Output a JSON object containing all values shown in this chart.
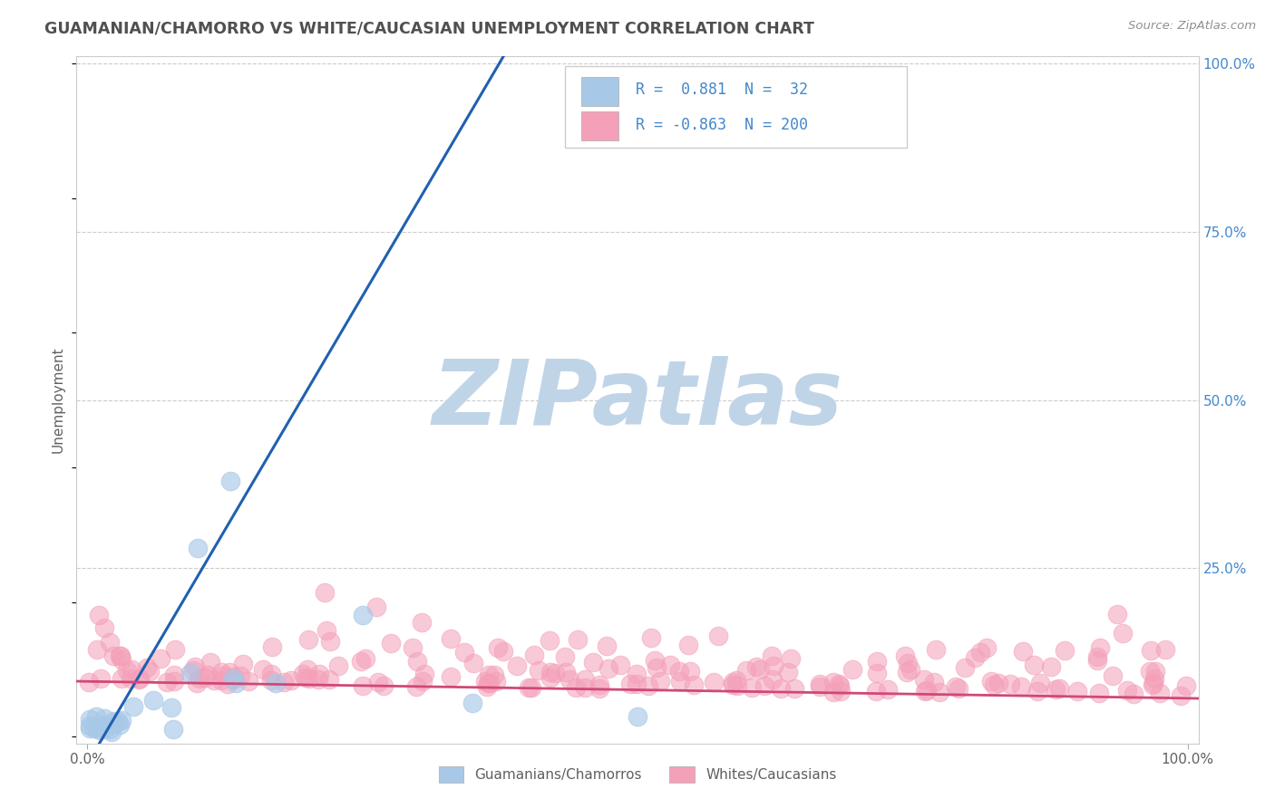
{
  "title": "GUAMANIAN/CHAMORRO VS WHITE/CAUCASIAN UNEMPLOYMENT CORRELATION CHART",
  "source": "Source: ZipAtlas.com",
  "ylabel": "Unemployment",
  "blue_R": 0.881,
  "blue_N": 32,
  "pink_R": -0.863,
  "pink_N": 200,
  "blue_dot_color": "#a8c8e8",
  "pink_dot_color": "#f4a0b8",
  "blue_line_color": "#2060b0",
  "pink_line_color": "#d04878",
  "watermark": "ZIPatlas",
  "watermark_color_zip": "#c0d4e8",
  "watermark_color_atlas": "#b8cce0",
  "background_color": "#ffffff",
  "grid_color": "#cccccc",
  "title_color": "#505050",
  "axis_label_color": "#606060",
  "right_tick_color": "#4488cc",
  "legend_square_blue": "#a8c8e8",
  "legend_square_pink": "#f4a0b8",
  "legend_text_color": "#4488cc",
  "legend_border_color": "#cccccc"
}
